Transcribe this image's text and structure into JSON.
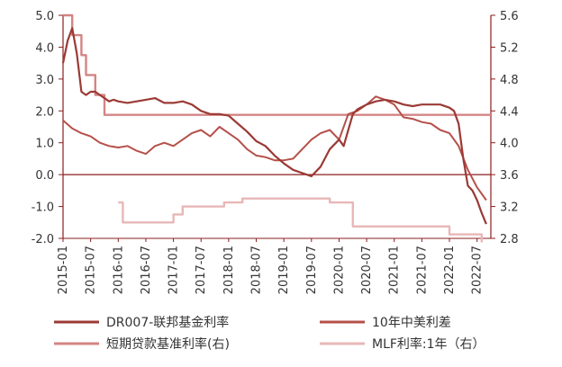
{
  "chart_data": {
    "type": "line",
    "x_tick_labels": [
      "2015-01",
      "2015-07",
      "2016-01",
      "2016-07",
      "2017-01",
      "2017-07",
      "2018-01",
      "2018-07",
      "2019-01",
      "2019-07",
      "2020-01",
      "2020-07",
      "2021-01",
      "2021-07",
      "2022-01",
      "2022-07"
    ],
    "y_left": {
      "ylim": [
        -2.0,
        5.0
      ],
      "ticks": [
        "5.0",
        "4.0",
        "3.0",
        "2.0",
        "1.0",
        "0.0",
        "-1.0",
        "-2.0"
      ]
    },
    "y_right": {
      "ylim": [
        2.8,
        5.6
      ],
      "ticks": [
        "5.6",
        "5.2",
        "4.8",
        "4.4",
        "4.0",
        "3.6",
        "3.2",
        "2.8"
      ]
    },
    "grid": false,
    "legend_position": "bottom",
    "series": [
      {
        "name": "DR007-联邦基金利率",
        "axis": "left",
        "color": "#9B3A35",
        "points": [
          [
            "2015-01",
            3.5
          ],
          [
            "2015-02",
            4.2
          ],
          [
            "2015-03",
            4.6
          ],
          [
            "2015-04",
            3.8
          ],
          [
            "2015-05",
            2.6
          ],
          [
            "2015-06",
            2.5
          ],
          [
            "2015-07",
            2.6
          ],
          [
            "2015-08",
            2.6
          ],
          [
            "2015-09",
            2.5
          ],
          [
            "2015-10",
            2.4
          ],
          [
            "2015-11",
            2.3
          ],
          [
            "2015-12",
            2.35
          ],
          [
            "2016-01",
            2.3
          ],
          [
            "2016-03",
            2.25
          ],
          [
            "2016-05",
            2.3
          ],
          [
            "2016-07",
            2.35
          ],
          [
            "2016-09",
            2.4
          ],
          [
            "2016-11",
            2.25
          ],
          [
            "2017-01",
            2.25
          ],
          [
            "2017-03",
            2.3
          ],
          [
            "2017-05",
            2.2
          ],
          [
            "2017-07",
            2.0
          ],
          [
            "2017-09",
            1.9
          ],
          [
            "2017-11",
            1.9
          ],
          [
            "2018-01",
            1.85
          ],
          [
            "2018-03",
            1.6
          ],
          [
            "2018-05",
            1.35
          ],
          [
            "2018-07",
            1.05
          ],
          [
            "2018-09",
            0.9
          ],
          [
            "2018-11",
            0.6
          ],
          [
            "2019-01",
            0.35
          ],
          [
            "2019-03",
            0.15
          ],
          [
            "2019-05",
            0.05
          ],
          [
            "2019-07",
            -0.05
          ],
          [
            "2019-09",
            0.25
          ],
          [
            "2019-11",
            0.8
          ],
          [
            "2020-01",
            1.1
          ],
          [
            "2020-02",
            0.9
          ],
          [
            "2020-03",
            1.4
          ],
          [
            "2020-04",
            1.9
          ],
          [
            "2020-05",
            2.05
          ],
          [
            "2020-07",
            2.2
          ],
          [
            "2020-09",
            2.3
          ],
          [
            "2020-11",
            2.35
          ],
          [
            "2021-01",
            2.3
          ],
          [
            "2021-03",
            2.2
          ],
          [
            "2021-05",
            2.15
          ],
          [
            "2021-07",
            2.2
          ],
          [
            "2021-09",
            2.2
          ],
          [
            "2021-11",
            2.2
          ],
          [
            "2022-01",
            2.1
          ],
          [
            "2022-02",
            2.0
          ],
          [
            "2022-03",
            1.6
          ],
          [
            "2022-04",
            0.5
          ],
          [
            "2022-05",
            -0.35
          ],
          [
            "2022-06",
            -0.5
          ],
          [
            "2022-07",
            -0.8
          ],
          [
            "2022-08",
            -1.2
          ],
          [
            "2022-09",
            -1.55
          ]
        ]
      },
      {
        "name": "10年中美利差",
        "axis": "left",
        "color": "#B5504A",
        "points": [
          [
            "2015-01",
            1.7
          ],
          [
            "2015-03",
            1.45
          ],
          [
            "2015-05",
            1.3
          ],
          [
            "2015-07",
            1.2
          ],
          [
            "2015-09",
            1.0
          ],
          [
            "2015-11",
            0.9
          ],
          [
            "2016-01",
            0.85
          ],
          [
            "2016-03",
            0.9
          ],
          [
            "2016-05",
            0.75
          ],
          [
            "2016-07",
            0.65
          ],
          [
            "2016-09",
            0.9
          ],
          [
            "2016-11",
            1.0
          ],
          [
            "2017-01",
            0.9
          ],
          [
            "2017-03",
            1.1
          ],
          [
            "2017-05",
            1.3
          ],
          [
            "2017-07",
            1.4
          ],
          [
            "2017-09",
            1.2
          ],
          [
            "2017-11",
            1.5
          ],
          [
            "2018-01",
            1.3
          ],
          [
            "2018-03",
            1.1
          ],
          [
            "2018-05",
            0.8
          ],
          [
            "2018-07",
            0.6
          ],
          [
            "2018-09",
            0.55
          ],
          [
            "2018-11",
            0.45
          ],
          [
            "2019-01",
            0.45
          ],
          [
            "2019-03",
            0.5
          ],
          [
            "2019-05",
            0.8
          ],
          [
            "2019-07",
            1.1
          ],
          [
            "2019-09",
            1.3
          ],
          [
            "2019-11",
            1.4
          ],
          [
            "2020-01",
            1.1
          ],
          [
            "2020-03",
            1.9
          ],
          [
            "2020-05",
            2.0
          ],
          [
            "2020-07",
            2.2
          ],
          [
            "2020-09",
            2.45
          ],
          [
            "2020-11",
            2.35
          ],
          [
            "2021-01",
            2.2
          ],
          [
            "2021-03",
            1.8
          ],
          [
            "2021-05",
            1.75
          ],
          [
            "2021-07",
            1.65
          ],
          [
            "2021-09",
            1.6
          ],
          [
            "2021-11",
            1.4
          ],
          [
            "2022-01",
            1.3
          ],
          [
            "2022-03",
            0.9
          ],
          [
            "2022-05",
            0.15
          ],
          [
            "2022-07",
            -0.4
          ],
          [
            "2022-09",
            -0.8
          ]
        ]
      },
      {
        "name": "短期贷款基准利率(右)",
        "axis": "right",
        "color": "#D48484",
        "points": [
          [
            "2015-01",
            5.6
          ],
          [
            "2015-03",
            5.6
          ],
          [
            "2015-03",
            5.35
          ],
          [
            "2015-05",
            5.35
          ],
          [
            "2015-05",
            5.1
          ],
          [
            "2015-06",
            5.1
          ],
          [
            "2015-06",
            4.85
          ],
          [
            "2015-08",
            4.85
          ],
          [
            "2015-08",
            4.6
          ],
          [
            "2015-10",
            4.6
          ],
          [
            "2015-10",
            4.35
          ],
          [
            "2022-10",
            4.35
          ]
        ]
      },
      {
        "name": "MLF利率:1年（右）",
        "axis": "right",
        "color": "#E8B7B7",
        "points": [
          [
            "2016-01",
            3.25
          ],
          [
            "2016-02",
            3.25
          ],
          [
            "2016-02",
            3.0
          ],
          [
            "2017-01",
            3.0
          ],
          [
            "2017-01",
            3.1
          ],
          [
            "2017-03",
            3.1
          ],
          [
            "2017-03",
            3.2
          ],
          [
            "2017-12",
            3.2
          ],
          [
            "2017-12",
            3.25
          ],
          [
            "2018-04",
            3.25
          ],
          [
            "2018-04",
            3.3
          ],
          [
            "2019-11",
            3.3
          ],
          [
            "2019-11",
            3.25
          ],
          [
            "2020-04",
            3.25
          ],
          [
            "2020-04",
            2.95
          ],
          [
            "2022-01",
            2.95
          ],
          [
            "2022-01",
            2.85
          ],
          [
            "2022-08",
            2.85
          ],
          [
            "2022-08",
            2.75
          ]
        ]
      }
    ]
  }
}
